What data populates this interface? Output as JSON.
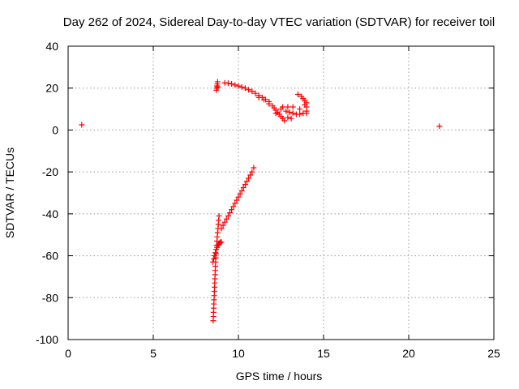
{
  "chart_data": {
    "type": "scatter",
    "title": "Day 262 of 2024, Sidereal Day-to-day VTEC variation (SDTVAR) for receiver toil",
    "xlabel": "GPS time / hours",
    "ylabel": "SDTVAR / TECUs",
    "xlim": [
      0,
      25
    ],
    "ylim": [
      -100,
      40
    ],
    "xticks": [
      "0",
      "5",
      "10",
      "15",
      "20",
      "25"
    ],
    "yticks": [
      "-100",
      "-80",
      "-60",
      "-40",
      "-20",
      "0",
      "20",
      "40"
    ],
    "grid": true,
    "marker": "+",
    "color": "#ff0000",
    "series": [
      {
        "points": [
          [
            0.8,
            2.5
          ],
          [
            21.8,
            1.8
          ],
          [
            8.52,
            -91
          ],
          [
            8.53,
            -89
          ],
          [
            8.54,
            -87
          ],
          [
            8.55,
            -85
          ],
          [
            8.56,
            -83
          ],
          [
            8.57,
            -81
          ],
          [
            8.58,
            -79
          ],
          [
            8.59,
            -77
          ],
          [
            8.6,
            -75
          ],
          [
            8.61,
            -73
          ],
          [
            8.62,
            -71
          ],
          [
            8.63,
            -69
          ],
          [
            8.64,
            -67
          ],
          [
            8.65,
            -65
          ],
          [
            8.66,
            -63
          ],
          [
            8.67,
            -61
          ],
          [
            8.68,
            -59
          ],
          [
            8.7,
            -57
          ],
          [
            8.72,
            -55
          ],
          [
            8.74,
            -53
          ],
          [
            8.76,
            -51
          ],
          [
            8.78,
            -49
          ],
          [
            8.8,
            -47
          ],
          [
            8.82,
            -45
          ],
          [
            8.84,
            -43
          ],
          [
            8.86,
            -41
          ],
          [
            8.5,
            -63
          ],
          [
            8.55,
            -61.5
          ],
          [
            8.6,
            -60
          ],
          [
            8.65,
            -58.5
          ],
          [
            8.7,
            -57
          ],
          [
            8.75,
            -56
          ],
          [
            8.8,
            -55
          ],
          [
            8.85,
            -54.5
          ],
          [
            8.9,
            -54
          ],
          [
            8.95,
            -53.5
          ],
          [
            9.0,
            -53.5
          ],
          [
            9.0,
            -47
          ],
          [
            9.1,
            -45.5
          ],
          [
            9.2,
            -44
          ],
          [
            9.3,
            -42.5
          ],
          [
            9.4,
            -41
          ],
          [
            9.5,
            -39.5
          ],
          [
            9.6,
            -38
          ],
          [
            9.7,
            -36.5
          ],
          [
            9.8,
            -35
          ],
          [
            9.9,
            -33.5
          ],
          [
            10.0,
            -32
          ],
          [
            10.1,
            -30.5
          ],
          [
            10.2,
            -29
          ],
          [
            10.3,
            -27.5
          ],
          [
            10.4,
            -26
          ],
          [
            10.5,
            -24.5
          ],
          [
            10.6,
            -23
          ],
          [
            10.7,
            -21.5
          ],
          [
            10.8,
            -20
          ],
          [
            10.9,
            -18
          ],
          [
            8.7,
            19
          ],
          [
            8.72,
            20
          ],
          [
            8.74,
            21
          ],
          [
            8.76,
            22
          ],
          [
            8.78,
            23
          ],
          [
            8.8,
            20.5
          ],
          [
            9.2,
            22.5
          ],
          [
            9.4,
            22.3
          ],
          [
            9.6,
            22
          ],
          [
            9.8,
            21.5
          ],
          [
            10.0,
            21
          ],
          [
            10.2,
            20.5
          ],
          [
            10.4,
            20
          ],
          [
            10.6,
            19.2
          ],
          [
            10.8,
            18.5
          ],
          [
            11.0,
            17.5
          ],
          [
            11.2,
            16.5
          ],
          [
            11.4,
            15.5
          ],
          [
            11.6,
            14.5
          ],
          [
            11.8,
            13.5
          ],
          [
            11.2,
            15.5
          ],
          [
            11.5,
            14.5
          ],
          [
            11.8,
            12.5
          ],
          [
            12.0,
            11.5
          ],
          [
            12.1,
            10.5
          ],
          [
            12.2,
            9.5
          ],
          [
            12.3,
            8.5
          ],
          [
            12.4,
            7.5
          ],
          [
            12.5,
            6.5
          ],
          [
            12.6,
            5.5
          ],
          [
            12.7,
            4.5
          ],
          [
            12.2,
            8
          ],
          [
            12.5,
            10
          ],
          [
            12.8,
            9
          ],
          [
            13.0,
            8.5
          ],
          [
            13.2,
            8
          ],
          [
            13.4,
            7.5
          ],
          [
            13.6,
            7.5
          ],
          [
            13.8,
            8
          ],
          [
            14.0,
            8
          ],
          [
            12.9,
            6
          ],
          [
            13.1,
            5.5
          ],
          [
            12.6,
            11
          ],
          [
            12.9,
            11
          ],
          [
            13.2,
            11
          ],
          [
            13.5,
            17
          ],
          [
            13.7,
            16
          ],
          [
            13.8,
            15
          ],
          [
            13.9,
            14
          ],
          [
            14.0,
            13
          ],
          [
            14.0,
            11
          ],
          [
            14.0,
            9
          ],
          [
            13.6,
            10
          ],
          [
            13.9,
            12
          ]
        ]
      }
    ]
  }
}
